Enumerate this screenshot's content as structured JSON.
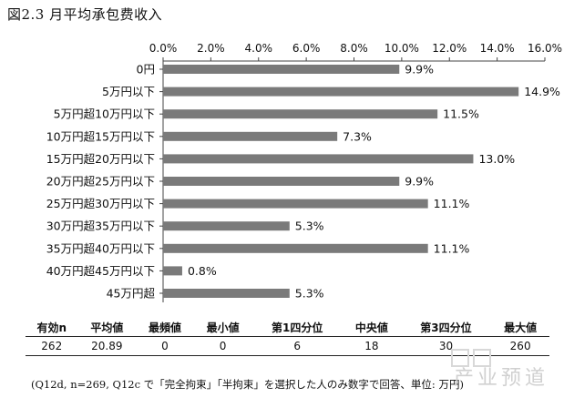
{
  "figure_title": "図2.3 月平均承包费收入",
  "chart_data": {
    "type": "bar",
    "orientation": "horizontal",
    "categories": [
      "0円",
      "5万円以下",
      "5万円超10万円以下",
      "10万円超15万円以下",
      "15万円超20万円以下",
      "20万円超25万円以下",
      "25万円超30万円以下",
      "30万円超35万円以下",
      "35万円超40万円以下",
      "40万円超45万円以下",
      "45万円超"
    ],
    "values": [
      9.9,
      14.9,
      11.5,
      7.3,
      13.0,
      9.9,
      11.1,
      5.3,
      11.1,
      0.8,
      5.3
    ],
    "value_labels": [
      "9.9%",
      "14.9%",
      "11.5%",
      "7.3%",
      "13.0%",
      "9.9%",
      "11.1%",
      "5.3%",
      "11.1%",
      "0.8%",
      "5.3%"
    ],
    "xlim": [
      0,
      16
    ],
    "x_ticks": [
      "0.0%",
      "2.0%",
      "4.0%",
      "6.0%",
      "8.0%",
      "10.0%",
      "12.0%",
      "14.0%",
      "16.0%"
    ],
    "x_axis_position": "top",
    "grid": false,
    "bar_color": "#7a7a7a"
  },
  "stats_table": {
    "headers": [
      "有効n",
      "平均値",
      "最頻値",
      "最小値",
      "第1四分位",
      "中央値",
      "第3四分位",
      "最大値"
    ],
    "values": [
      "262",
      "20.89",
      "0",
      "0",
      "6",
      "18",
      "30",
      "260"
    ]
  },
  "footnote": "(Q12d, n=269, Q12c で「完全拘束」「半拘束」を選択した人のみ数字で回答、単位: 万円)",
  "watermark": "产业预道"
}
